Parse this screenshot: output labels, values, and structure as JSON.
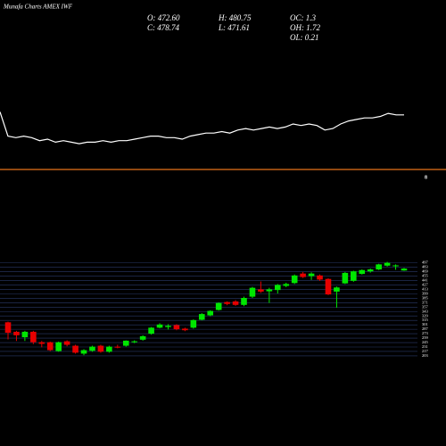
{
  "title": "Munafa Charts AMEX IWF",
  "stats": [
    "O: 472.60",
    "H: 480.75",
    "OC: 1.3",
    "C: 478.74",
    "L: 471.61",
    "OH: 1.72",
    "OL: 0.21"
  ],
  "chart_data": [
    {
      "type": "line",
      "color": "#ffffff",
      "ylim": [
        0,
        100
      ],
      "annotation": "8",
      "ref_color": "#e8731a",
      "values": [
        38,
        22,
        21,
        22,
        21,
        19,
        20,
        18,
        19,
        18,
        17,
        18,
        18,
        19,
        18,
        19,
        19,
        20,
        21,
        22,
        22,
        21,
        21,
        20,
        22,
        23,
        24,
        24,
        25,
        24,
        26,
        27,
        26,
        27,
        28,
        27,
        28,
        30,
        29,
        30,
        29,
        26,
        27,
        30,
        32,
        33,
        34,
        34,
        35,
        37,
        36,
        36
      ]
    },
    {
      "type": "candlestick",
      "up_color": "#00e600",
      "down_color": "#e60000",
      "grid_color": "#2a3a6a",
      "ylim": [
        200,
        510
      ],
      "yticks": [
        497,
        483,
        469,
        455,
        441,
        427,
        413,
        399,
        385,
        371,
        357,
        343,
        329,
        315,
        301,
        287,
        273,
        259,
        245,
        231,
        217,
        203
      ],
      "open": [
        309,
        279,
        262,
        279,
        246,
        246,
        218,
        249,
        235,
        210,
        219,
        235,
        216,
        232,
        235,
        246,
        254,
        273,
        292,
        294,
        300,
        289,
        292,
        317,
        331,
        348,
        373,
        375,
        364,
        390,
        413,
        407,
        411,
        424,
        433,
        463,
        455,
        457,
        446,
        406,
        432,
        440,
        462,
        470,
        476,
        488,
        486,
        472.6
      ],
      "close": [
        276,
        268,
        279,
        246,
        241,
        221,
        246,
        238,
        213,
        221,
        232,
        216,
        232,
        229,
        251,
        249,
        265,
        292,
        302,
        298,
        287,
        284,
        316,
        335,
        345,
        370,
        367,
        364,
        386,
        418,
        406,
        413,
        427,
        430,
        457,
        452,
        463,
        444,
        397,
        419,
        465,
        470,
        474,
        476,
        492,
        497,
        489,
        478.74
      ],
      "high": [
        311,
        282,
        282,
        282,
        250,
        248,
        248,
        252,
        238,
        224,
        235,
        238,
        235,
        238,
        252,
        252,
        268,
        294,
        306,
        303,
        303,
        292,
        318,
        338,
        347,
        372,
        375,
        379,
        390,
        421,
        438,
        418,
        430,
        434,
        460,
        468,
        467,
        460,
        448,
        422,
        468,
        472,
        476,
        479,
        494,
        500,
        492,
        480.75
      ],
      "low": [
        255,
        250,
        250,
        240,
        230,
        218,
        216,
        233,
        210,
        205,
        216,
        213,
        213,
        227,
        232,
        243,
        251,
        270,
        290,
        286,
        284,
        281,
        289,
        315,
        328,
        346,
        363,
        361,
        360,
        386,
        402,
        370,
        400,
        420,
        430,
        449,
        443,
        440,
        395,
        355,
        430,
        437,
        460,
        466,
        474,
        485,
        475,
        471.61
      ]
    }
  ]
}
